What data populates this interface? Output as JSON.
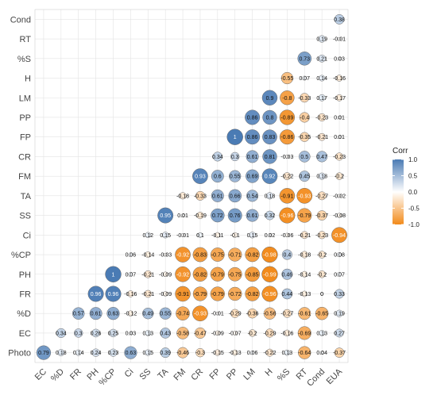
{
  "chart_data": {
    "type": "heatmap",
    "title": "",
    "variables": [
      "EC",
      "%D",
      "FR",
      "PH",
      "%CP",
      "Ci",
      "SS",
      "TA",
      "FM",
      "CR",
      "FP",
      "PP",
      "LM",
      "H",
      "%S",
      "RT",
      "Cond",
      "EUA"
    ],
    "y_variables_top_to_bottom": [
      "Cond",
      "RT",
      "%S",
      "H",
      "LM",
      "PP",
      "FP",
      "CR",
      "FM",
      "TA",
      "SS",
      "Ci",
      "%CP",
      "PH",
      "FR",
      "%D",
      "EC",
      "Photo"
    ],
    "rows": {
      "Cond": [
        0.38
      ],
      "RT": [
        0.19,
        -0.01
      ],
      "%S": [
        0.73,
        0.21,
        0.03
      ],
      "H": [
        -0.55,
        0.07,
        0.14,
        -0.16
      ],
      "LM": [
        0.9,
        -0.8,
        -0.33,
        0.17,
        -0.17
      ],
      "PP": [
        0.86,
        0.8,
        -0.89,
        -0.4,
        -0.23,
        0.01
      ],
      "FP": [
        1,
        0.86,
        0.83,
        -0.86,
        -0.35,
        -0.21,
        0.01
      ],
      "CR": [
        0.34,
        0.3,
        0.61,
        0.81,
        -0.03,
        0.5,
        0.47,
        -0.23
      ],
      "FM": [
        0.93,
        0.6,
        0.55,
        0.69,
        0.92,
        -0.22,
        0.45,
        0.18,
        -0.2
      ],
      "TA": [
        -0.18,
        -0.33,
        0.61,
        0.66,
        0.54,
        0.18,
        -0.91,
        -0.93,
        -0.27,
        -0.02
      ],
      "SS": [
        0.95,
        0.01,
        -0.19,
        0.72,
        0.76,
        0.61,
        0.32,
        -0.96,
        -0.79,
        -0.37,
        -0.08
      ],
      "Ci": [
        0.12,
        0.15,
        -0.01,
        0.1,
        -0.11,
        -0.1,
        0.15,
        0.02,
        -0.06,
        -0.21,
        -0.23,
        -0.94
      ],
      "%CP": [
        0.06,
        -0.14,
        -0.03,
        -0.92,
        -0.83,
        -0.75,
        -0.71,
        -0.82,
        -0.98,
        0.4,
        -0.18,
        -0.2,
        0.08
      ],
      "PH": [
        1,
        0.07,
        -0.21,
        -0.09,
        -0.92,
        -0.82,
        -0.79,
        -0.75,
        -0.85,
        -0.99,
        0.46,
        -0.14,
        -0.2,
        0.07
      ],
      "FR": [
        0.96,
        0.96,
        -0.16,
        -0.21,
        -0.09,
        -0.91,
        -0.79,
        -0.79,
        -0.72,
        -0.82,
        -0.96,
        0.44,
        -0.13,
        0,
        0.33
      ],
      "%D": [
        0.57,
        0.61,
        0.63,
        -0.12,
        0.49,
        0.55,
        -0.74,
        -0.93,
        -0.01,
        -0.29,
        -0.36,
        -0.56,
        -0.27,
        -0.61,
        -0.65,
        0.19
      ],
      "EC": [
        0.34,
        0.3,
        0.26,
        0.25,
        0.03,
        0.13,
        0.43,
        -0.58,
        -0.47,
        -0.09,
        -0.07,
        -0.2,
        -0.29,
        -0.16,
        -0.69,
        0.13,
        0.27
      ],
      "Photo": [
        0.79,
        0.18,
        0.14,
        0.24,
        0.23,
        0.63,
        0.15,
        0.39,
        -0.46,
        -0.3,
        -0.15,
        -0.13,
        0.06,
        -0.22,
        0.13,
        -0.64,
        0.04,
        -0.37
      ]
    },
    "legend": {
      "title": "Corr",
      "ticks": [
        "1.0",
        "0.5",
        "0.0",
        "-0.5",
        "-1.0"
      ],
      "tick_values": [
        1,
        0.5,
        0,
        -0.5,
        -1
      ],
      "placement": "right"
    },
    "colors": {
      "positive": "#4a7bb4",
      "neutral": "#ffffff",
      "negative": "#f28a1a",
      "grid": "#e3e3e3",
      "border": "#666666"
    },
    "grid": true
  }
}
